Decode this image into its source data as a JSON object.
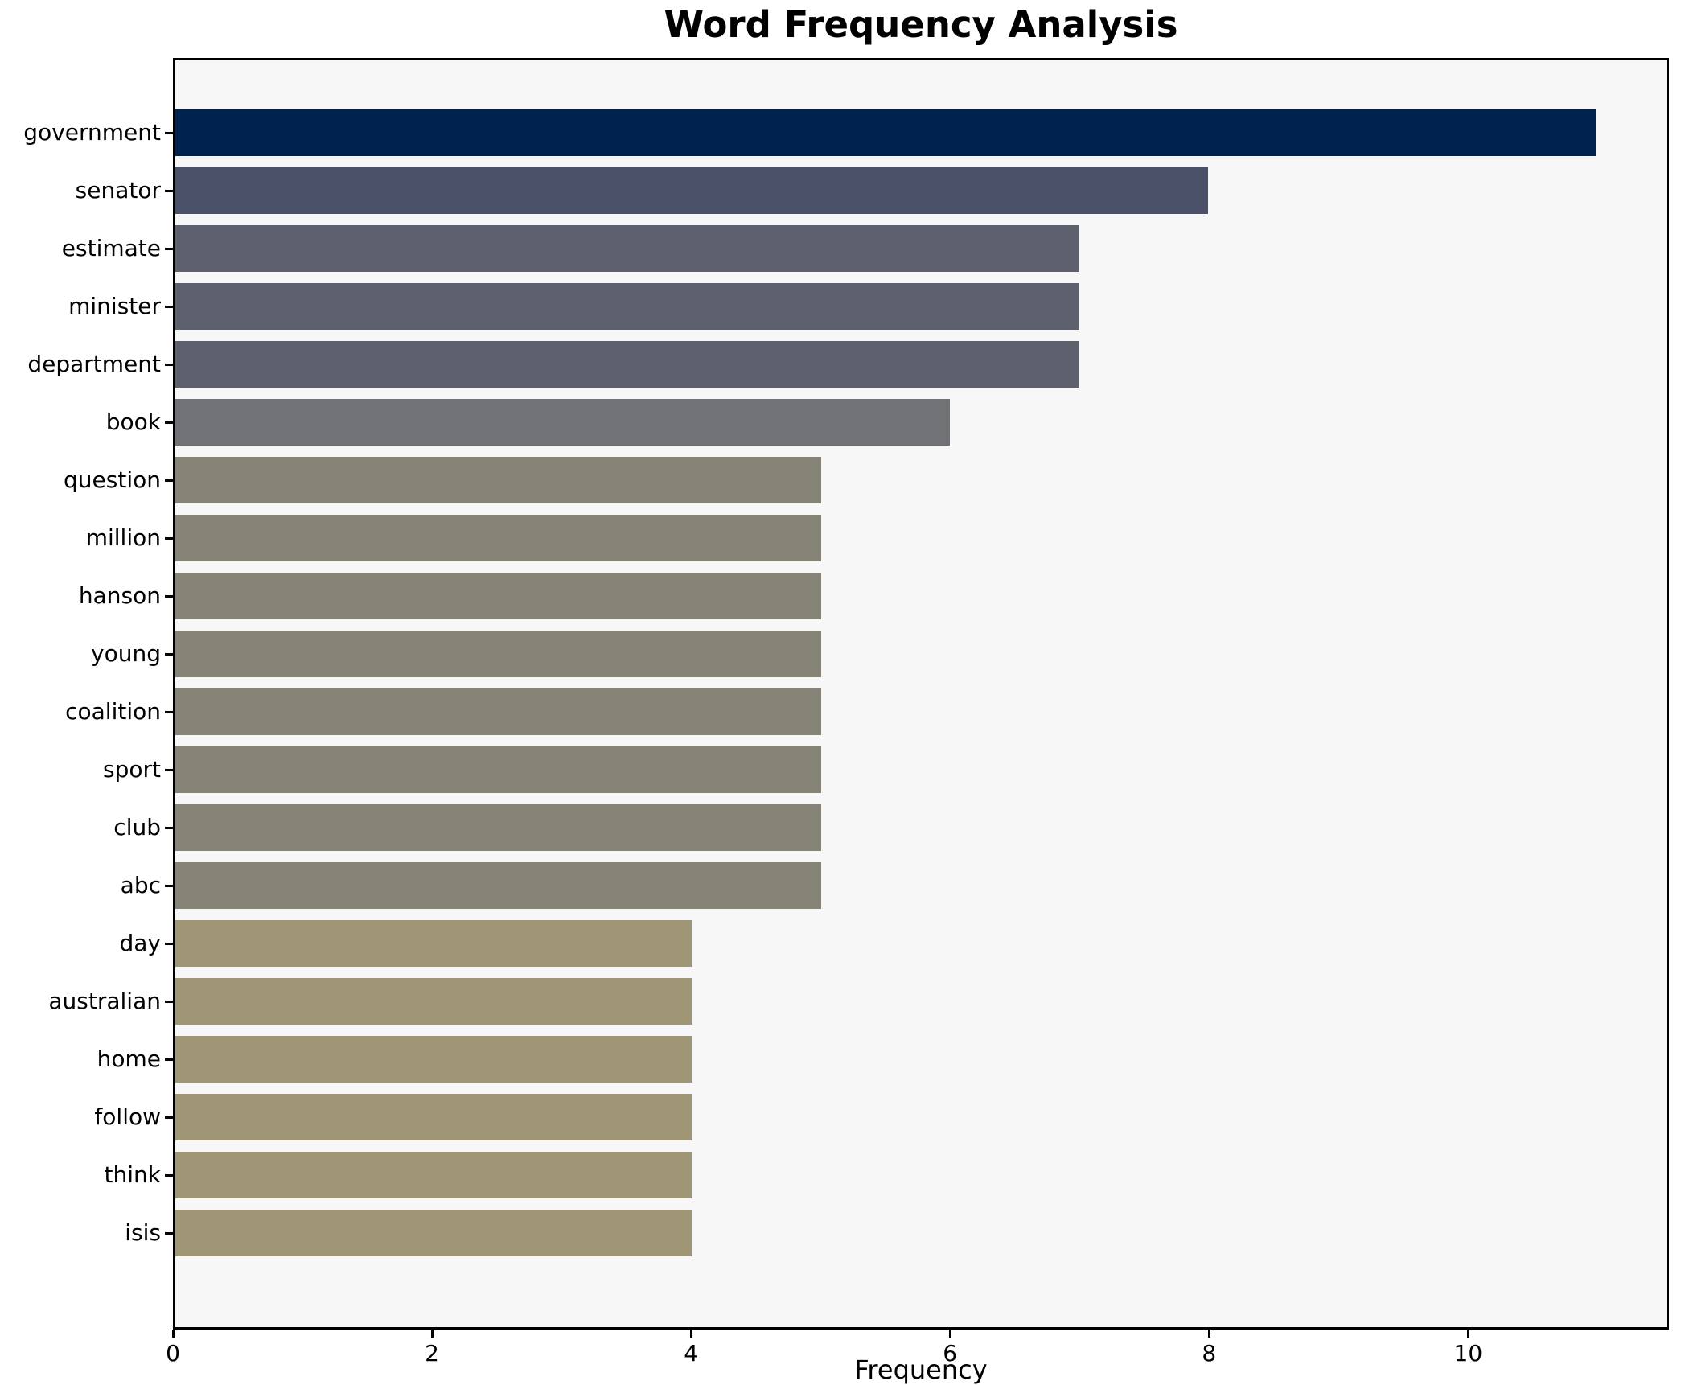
{
  "title": "Word Frequency Analysis",
  "chart_data": {
    "type": "bar",
    "orientation": "horizontal",
    "title": "Word Frequency Analysis",
    "xlabel": "Frequency",
    "ylabel": "",
    "categories": [
      "government",
      "senator",
      "estimate",
      "minister",
      "department",
      "book",
      "question",
      "million",
      "hanson",
      "young",
      "coalition",
      "sport",
      "club",
      "abc",
      "day",
      "australian",
      "home",
      "follow",
      "think",
      "isis"
    ],
    "values": [
      11,
      8,
      7,
      7,
      7,
      6,
      5,
      5,
      5,
      5,
      5,
      5,
      5,
      5,
      4,
      4,
      4,
      4,
      4,
      4
    ],
    "bar_colors": [
      "#00224e",
      "#4a5168",
      "#5d616e",
      "#5d616e",
      "#5d616e",
      "#717275",
      "#868476",
      "#868476",
      "#868476",
      "#868476",
      "#868476",
      "#868476",
      "#868476",
      "#868476",
      "#9e9674",
      "#9e9674",
      "#9e9674",
      "#9e9674",
      "#9e9674",
      "#9e9674"
    ],
    "xticks": [
      0,
      2,
      4,
      6,
      8,
      10
    ],
    "xlim": [
      0,
      11.55
    ],
    "grid": false,
    "legend_position": "none",
    "plot_background": "#f7f7f7",
    "figure_background": "#ffffff",
    "text_color": "#000000"
  }
}
